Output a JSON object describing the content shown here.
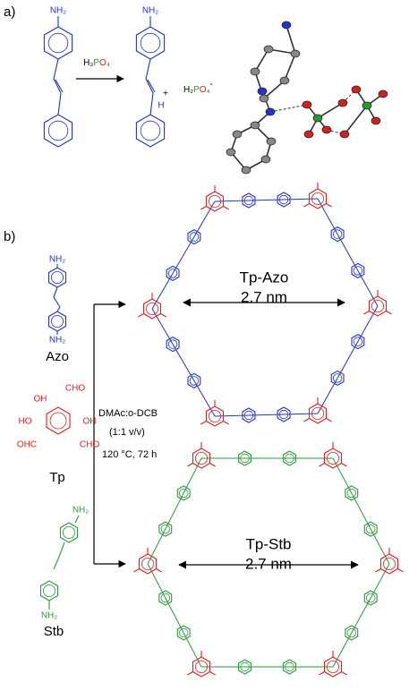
{
  "panel_a": {
    "label": "a)",
    "reactant_amine": "NH₂",
    "reagent_parts": [
      "H₃",
      "P",
      "O₄"
    ],
    "product_amine": "NH₂",
    "product_charge": "+",
    "product_nh": "H",
    "anion_parts": [
      "H₂",
      "P",
      "O₄",
      "-"
    ]
  },
  "panel_b": {
    "label": "b)",
    "azo": {
      "top": "NH₂",
      "bottom": "NH₂",
      "name": "Azo"
    },
    "tp": {
      "groups": [
        "CHO",
        "OH",
        "HO",
        "OHC",
        "CHO",
        "OH"
      ],
      "name": "Tp"
    },
    "stb": {
      "top": "NH₂",
      "bottom": "NH₂",
      "name": "Stb"
    },
    "conditions": [
      "DMAc:o-DCB",
      "(1:1 v/v)",
      "120 °C, 72 h"
    ],
    "cof_azo": {
      "name": "Tp-Azo",
      "size": "2.7 nm"
    },
    "cof_stb": {
      "name": "Tp-Stb",
      "size": "2.7 nm"
    }
  }
}
